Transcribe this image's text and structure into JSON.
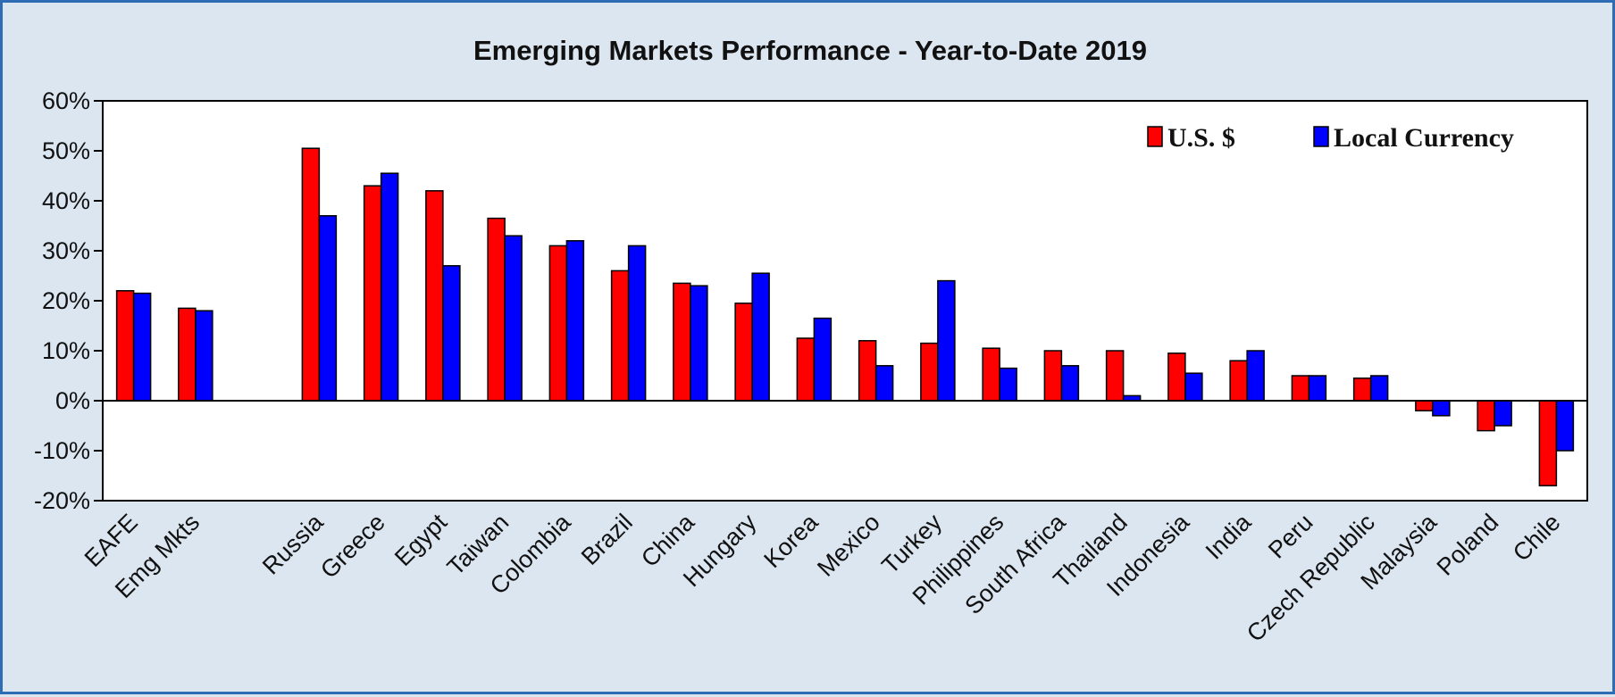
{
  "chart_data": {
    "type": "bar",
    "title": "Emerging Markets Performance - Year-to-Date 2019",
    "xlabel": "",
    "ylabel": "",
    "ylim": [
      -20,
      60
    ],
    "yticks": [
      60,
      50,
      40,
      30,
      20,
      10,
      0,
      -10,
      -20
    ],
    "ytick_labels": [
      "60%",
      "50%",
      "40%",
      "30%",
      "20%",
      "10%",
      "0%",
      "-10%",
      "-20%"
    ],
    "grid": false,
    "legend_position": "top-right",
    "categories": [
      "EAFE",
      "Emg Mkts",
      "",
      "Russia",
      "Greece",
      "Egypt",
      "Taiwan",
      "Colombia",
      "Brazil",
      "China",
      "Hungary",
      "Korea",
      "Mexico",
      "Turkey",
      "Philippines",
      "South Africa",
      "Thailand",
      "Indonesia",
      "India",
      "Peru",
      "Czech Republic",
      "Malaysia",
      "Poland",
      "Chile"
    ],
    "series": [
      {
        "name": "U.S. $",
        "color": "#ff0000",
        "values": [
          22,
          18.5,
          null,
          50.5,
          43,
          42,
          36.5,
          31,
          26,
          23.5,
          19.5,
          12.5,
          12,
          11.5,
          10.5,
          10,
          10,
          9.5,
          8,
          5,
          4.5,
          -2,
          -6,
          -17
        ]
      },
      {
        "name": "Local Currency",
        "color": "#0000ff",
        "values": [
          21.5,
          18,
          null,
          37,
          45.5,
          27,
          33,
          32,
          31,
          23,
          25.5,
          16.5,
          7,
          24,
          6.5,
          7,
          1,
          5.5,
          10,
          5,
          5,
          -3,
          -5,
          -10
        ]
      }
    ]
  }
}
